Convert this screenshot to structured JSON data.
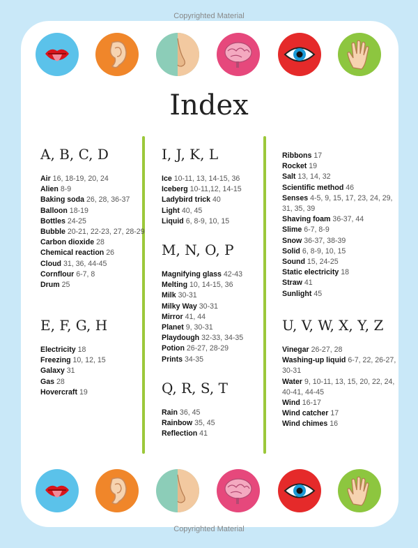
{
  "watermark_top": "Copyrighted Material",
  "watermark_bottom": "Copyrighted Material",
  "title": "Index",
  "icons": [
    {
      "name": "mouth-icon",
      "bg": "#5bc2ea"
    },
    {
      "name": "ear-icon",
      "bg": "#f0862a"
    },
    {
      "name": "nose-icon",
      "bg": "#8ccdb8"
    },
    {
      "name": "brain-icon",
      "bg": "#e6487c"
    },
    {
      "name": "eye-icon",
      "bg": "#e52a2a"
    },
    {
      "name": "hand-icon",
      "bg": "#8dc63f"
    }
  ],
  "accent": "#9cc83a",
  "sections": [
    {
      "heading": "A, B, C, D",
      "entries": [
        {
          "term": "Air",
          "pages": "16, 18-19, 20, 24"
        },
        {
          "term": "Alien",
          "pages": "8-9"
        },
        {
          "term": "Baking soda",
          "pages": "26, 28, 36-37"
        },
        {
          "term": "Balloon",
          "pages": "18-19"
        },
        {
          "term": "Bottles",
          "pages": "24-25"
        },
        {
          "term": "Bubble",
          "pages": "20-21, 22-23, 27, 28-29"
        },
        {
          "term": "Carbon dioxide",
          "pages": "28"
        },
        {
          "term": "Chemical reaction",
          "pages": "26"
        },
        {
          "term": "Cloud",
          "pages": "31, 36, 44-45"
        },
        {
          "term": "Cornflour",
          "pages": "6-7, 8"
        },
        {
          "term": "Drum",
          "pages": "25"
        }
      ]
    },
    {
      "heading": "E, F, G, H",
      "entries": [
        {
          "term": "Electricity",
          "pages": "18"
        },
        {
          "term": "Freezing",
          "pages": "10, 12, 15"
        },
        {
          "term": "Galaxy",
          "pages": "31"
        },
        {
          "term": "Gas",
          "pages": "28"
        },
        {
          "term": "Hovercraft",
          "pages": "19"
        }
      ]
    },
    {
      "heading": "I, J, K, L",
      "entries": [
        {
          "term": "Ice",
          "pages": "10-11, 13, 14-15, 36"
        },
        {
          "term": "Iceberg",
          "pages": "10-11,12, 14-15"
        },
        {
          "term": "Ladybird trick",
          "pages": "40"
        },
        {
          "term": "Light",
          "pages": "40, 45"
        },
        {
          "term": "Liquid",
          "pages": "6, 8-9, 10, 15"
        }
      ]
    },
    {
      "heading": "M, N, O, P",
      "entries": [
        {
          "term": "Magnifying glass",
          "pages": "42-43"
        },
        {
          "term": "Melting",
          "pages": "10, 14-15, 36"
        },
        {
          "term": "Milk",
          "pages": "30-31"
        },
        {
          "term": "Milky Way",
          "pages": "30-31"
        },
        {
          "term": "Mirror",
          "pages": "41, 44"
        },
        {
          "term": "Planet",
          "pages": "9, 30-31"
        },
        {
          "term": "Playdough",
          "pages": "32-33, 34-35"
        },
        {
          "term": "Potion",
          "pages": "26-27, 28-29"
        },
        {
          "term": "Prints",
          "pages": "34-35"
        }
      ]
    },
    {
      "heading": "Q, R, S, T",
      "entries": [
        {
          "term": "Rain",
          "pages": "36, 45"
        },
        {
          "term": "Rainbow",
          "pages": "35, 45"
        },
        {
          "term": "Reflection",
          "pages": "41"
        }
      ]
    },
    {
      "heading": "",
      "entries": [
        {
          "term": "Ribbons",
          "pages": "17"
        },
        {
          "term": "Rocket",
          "pages": "19"
        },
        {
          "term": "Salt",
          "pages": "13, 14, 32"
        },
        {
          "term": "Scientific method",
          "pages": "46"
        },
        {
          "term": "Senses",
          "pages": "4-5, 9, 15, 17, 23, 24, 29, 31, 35, 39"
        },
        {
          "term": "Shaving foam",
          "pages": "36-37, 44"
        },
        {
          "term": "Slime",
          "pages": "6-7, 8-9"
        },
        {
          "term": "Snow",
          "pages": "36-37, 38-39"
        },
        {
          "term": "Solid",
          "pages": "6, 8-9, 10, 15"
        },
        {
          "term": "Sound",
          "pages": "15, 24-25"
        },
        {
          "term": "Static electricity",
          "pages": "18"
        },
        {
          "term": "Straw",
          "pages": "41"
        },
        {
          "term": "Sunlight",
          "pages": "45"
        }
      ]
    },
    {
      "heading": "U, V, W, X, Y, Z",
      "entries": [
        {
          "term": "Vinegar",
          "pages": "26-27, 28"
        },
        {
          "term": "Washing-up liquid",
          "pages": "6-7, 22, 26-27, 30-31"
        },
        {
          "term": "Water",
          "pages": "9, 10-11, 13, 15, 20, 22, 24, 40-41, 44-45"
        },
        {
          "term": "Wind",
          "pages": "16-17"
        },
        {
          "term": "Wind catcher",
          "pages": "17"
        },
        {
          "term": "Wind chimes",
          "pages": "16"
        }
      ]
    }
  ]
}
